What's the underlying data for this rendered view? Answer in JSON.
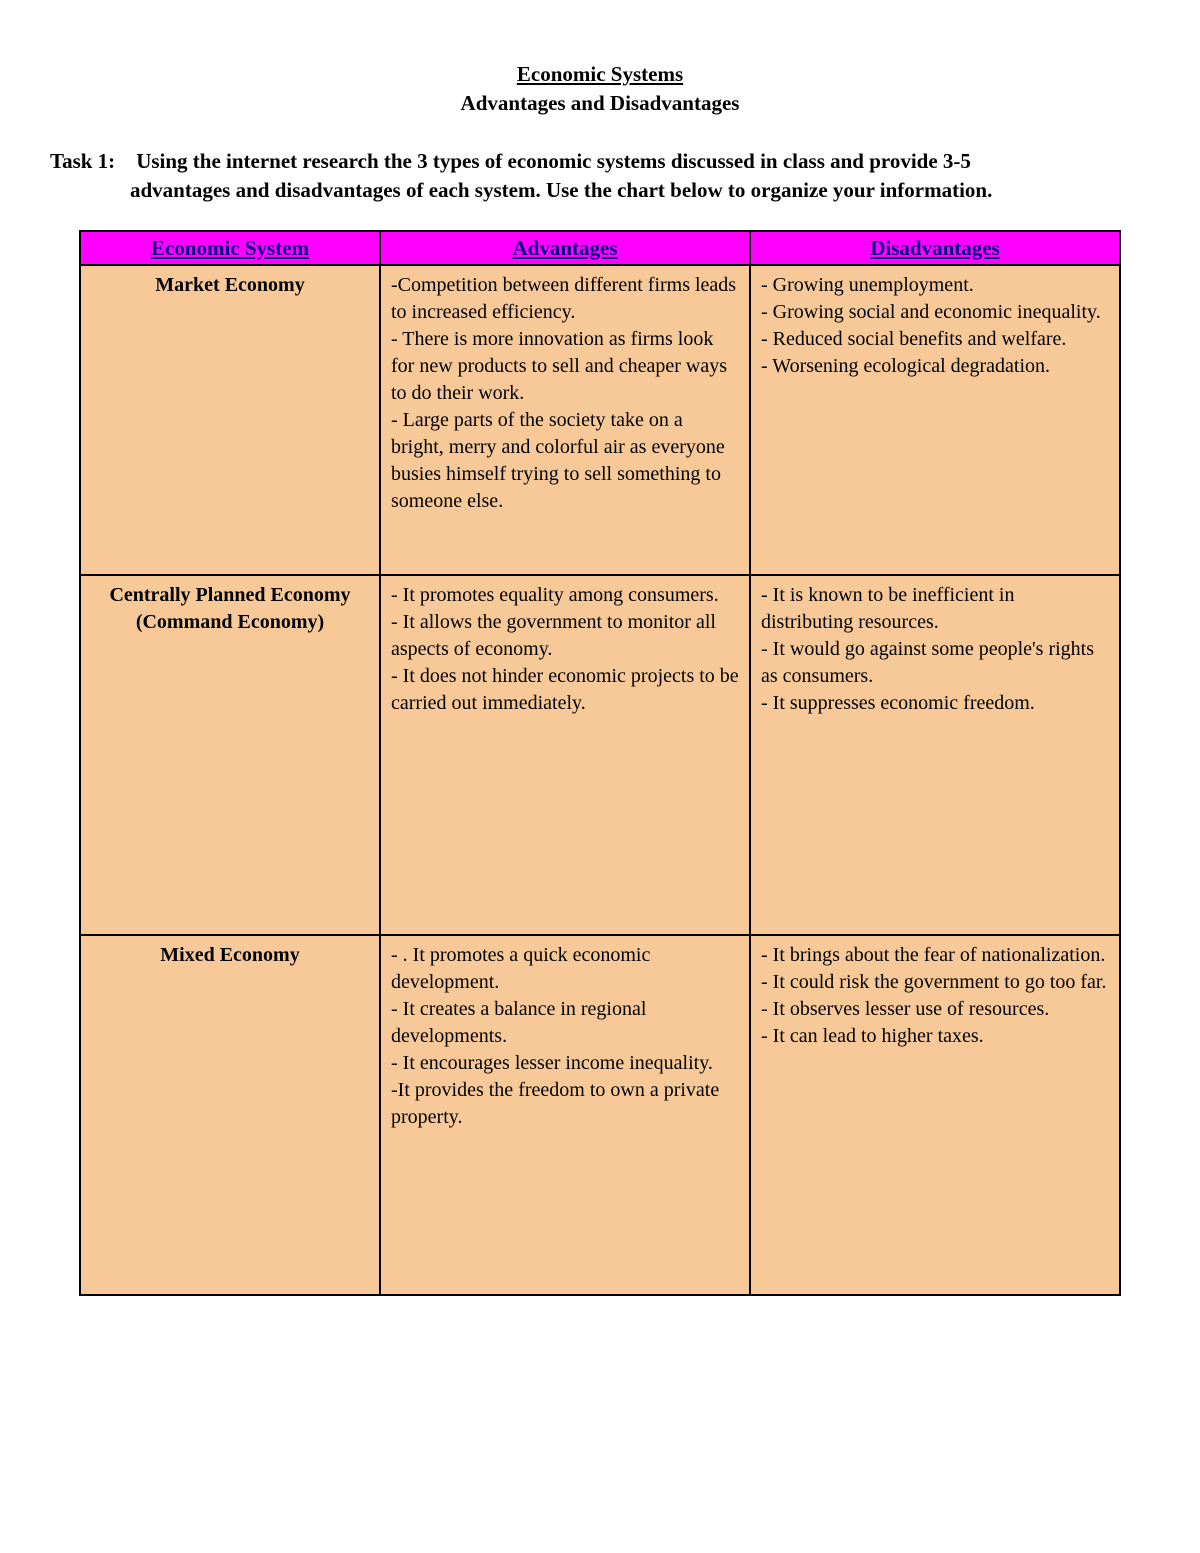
{
  "title": {
    "main": "Economic Systems",
    "sub": "Advantages and Disadvantages"
  },
  "task": {
    "label": "Task 1:",
    "line1": "Using the internet research the 3 types of economic systems discussed in class and provide 3-5",
    "line2": "advantages and disadvantages of each system.  Use the chart below to organize your information."
  },
  "table": {
    "header_bg": "#ff00ff",
    "header_fg": "#000080",
    "body_bg": "#f7c999",
    "body_fg": "#000000",
    "border_color": "#000000",
    "columns": [
      "Economic System",
      "Advantages",
      "Disadvantages"
    ],
    "rows": [
      {
        "system": "Market Economy",
        "advantages": "-Competition between different firms leads to increased efficiency.\n- There is more innovation as firms look for new products to sell and cheaper ways to do their work.\n- Large parts of the society take on a bright, merry and colorful air as everyone busies himself trying to sell something to someone else.",
        "disadvantages": "- Growing unemployment.\n- Growing social and economic inequality.\n- Reduced social benefits and welfare.\n- Worsening ecological degradation."
      },
      {
        "system": "Centrally Planned Economy (Command Economy)",
        "advantages": "- It promotes equality among consumers.\n- It allows the government to monitor all aspects of economy.\n- It does not hinder economic projects to be carried out immediately.",
        "disadvantages": "- It is known to be inefficient in distributing resources.\n- It would go against some people's rights as consumers.\n- It suppresses economic freedom."
      },
      {
        "system": "Mixed Economy",
        "advantages": "- . It promotes a quick economic development.\n- It creates a balance in regional developments.\n- It encourages lesser income inequality.\n-It provides the freedom to own a private property.",
        "disadvantages": "- It brings about the fear of nationalization.\n- It could risk the government to go too far.\n- It observes lesser use of resources.\n- It can lead to higher taxes."
      }
    ]
  }
}
